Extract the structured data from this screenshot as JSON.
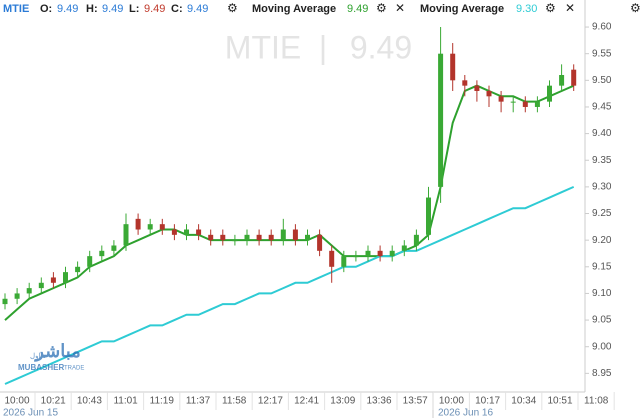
{
  "header": {
    "symbol": "MTIE",
    "open_label": "O:",
    "open": 9.49,
    "high_label": "H:",
    "high": 9.49,
    "low_label": "L:",
    "low": 9.49,
    "close_label": "C:",
    "close": 9.49
  },
  "logo": {
    "arabic": "مباشر",
    "arabic_sub": "تداول",
    "name": "MUBASHER",
    "sub": "TRADE"
  },
  "chart_data": {
    "type": "candlestick",
    "open": [
      9.08,
      9.09,
      9.1,
      9.11,
      9.13,
      9.12,
      9.14,
      9.15,
      9.17,
      9.18,
      9.19,
      9.24,
      9.22,
      9.23,
      9.22,
      9.21,
      9.22,
      9.21,
      9.21,
      9.2,
      9.2,
      9.21,
      9.21,
      9.2,
      9.22,
      9.2,
      9.21,
      9.18,
      9.15,
      9.17,
      9.17,
      9.18,
      9.17,
      9.18,
      9.19,
      9.21,
      9.3,
      9.55,
      9.5,
      9.49,
      9.48,
      9.47,
      9.46,
      9.46,
      9.45,
      9.46,
      9.49,
      9.52
    ],
    "high": [
      9.1,
      9.11,
      9.12,
      9.13,
      9.14,
      9.15,
      9.16,
      9.18,
      9.19,
      9.2,
      9.25,
      9.25,
      9.24,
      9.24,
      9.23,
      9.23,
      9.23,
      9.22,
      9.22,
      9.21,
      9.22,
      9.22,
      9.22,
      9.24,
      9.23,
      9.22,
      9.22,
      9.19,
      9.18,
      9.18,
      9.19,
      9.19,
      9.19,
      9.2,
      9.22,
      9.3,
      9.6,
      9.57,
      9.51,
      9.5,
      9.49,
      9.48,
      9.47,
      9.47,
      9.47,
      9.5,
      9.53,
      9.53
    ],
    "low": [
      9.07,
      9.08,
      9.09,
      9.1,
      9.11,
      9.11,
      9.13,
      9.14,
      9.16,
      9.17,
      9.18,
      9.21,
      9.21,
      9.21,
      9.2,
      9.2,
      9.2,
      9.19,
      9.19,
      9.19,
      9.19,
      9.19,
      9.19,
      9.19,
      9.19,
      9.19,
      9.17,
      9.12,
      9.14,
      9.16,
      9.16,
      9.16,
      9.16,
      9.17,
      9.18,
      9.2,
      9.27,
      9.48,
      9.47,
      9.46,
      9.45,
      9.44,
      9.44,
      9.44,
      9.44,
      9.45,
      9.48,
      9.48
    ],
    "close": [
      9.09,
      9.1,
      9.11,
      9.12,
      9.12,
      9.14,
      9.15,
      9.17,
      9.18,
      9.19,
      9.23,
      9.22,
      9.23,
      9.22,
      9.21,
      9.22,
      9.21,
      9.2,
      9.2,
      9.2,
      9.21,
      9.2,
      9.2,
      9.22,
      9.2,
      9.21,
      9.18,
      9.15,
      9.17,
      9.17,
      9.18,
      9.17,
      9.18,
      9.19,
      9.21,
      9.28,
      9.55,
      9.5,
      9.49,
      9.48,
      9.47,
      9.46,
      9.46,
      9.45,
      9.46,
      9.49,
      9.51,
      9.49
    ],
    "up_color": "#3aa935",
    "down_color": "#b3342b",
    "series": [
      {
        "name": "Moving Average",
        "color": "#2ea12e",
        "last": 9.49,
        "values": [
          9.05,
          9.07,
          9.09,
          9.1,
          9.11,
          9.12,
          9.13,
          9.15,
          9.16,
          9.17,
          9.19,
          9.2,
          9.21,
          9.22,
          9.22,
          9.21,
          9.21,
          9.2,
          9.2,
          9.2,
          9.2,
          9.2,
          9.2,
          9.2,
          9.2,
          9.2,
          9.21,
          9.19,
          9.17,
          9.17,
          9.17,
          9.17,
          9.17,
          9.18,
          9.19,
          9.21,
          9.3,
          9.42,
          9.48,
          9.49,
          9.48,
          9.47,
          9.47,
          9.46,
          9.46,
          9.47,
          9.48,
          9.49
        ]
      },
      {
        "name": "Moving Average",
        "color": "#2ecbd4",
        "last": {
          "value": 9.3,
          "label": "9.30"
        },
        "values": [
          8.93,
          8.94,
          8.95,
          8.96,
          8.97,
          8.98,
          8.99,
          9.0,
          9.01,
          9.01,
          9.02,
          9.03,
          9.04,
          9.04,
          9.05,
          9.06,
          9.06,
          9.07,
          9.08,
          9.08,
          9.09,
          9.1,
          9.1,
          9.11,
          9.12,
          9.12,
          9.13,
          9.14,
          9.15,
          9.15,
          9.16,
          9.17,
          9.17,
          9.18,
          9.18,
          9.19,
          9.2,
          9.21,
          9.22,
          9.23,
          9.24,
          9.25,
          9.26,
          9.26,
          9.27,
          9.28,
          9.29,
          9.3
        ]
      }
    ],
    "xtick_labels": [
      "10:00",
      "10:21",
      "10:43",
      "11:01",
      "11:19",
      "11:37",
      "11:58",
      "12:17",
      "12:41",
      "13:09",
      "13:36",
      "13:57",
      "10:00",
      "10:17",
      "10:34",
      "10:51",
      "11:08"
    ],
    "date_labels": [
      "2026 Jun 15",
      "2026 Jun 16"
    ],
    "ylim": [
      8.915,
      9.632
    ],
    "yticks": [
      {
        "value": 9.6,
        "label": "9.60"
      },
      9.55,
      {
        "value": 9.5,
        "label": "9.50"
      },
      9.45,
      {
        "value": 9.4,
        "label": "9.40"
      },
      9.35,
      {
        "value": 9.3,
        "label": "9.30"
      },
      9.25,
      {
        "value": 9.2,
        "label": "9.20"
      },
      9.15,
      {
        "value": 9.1,
        "label": "9.10"
      },
      9.05,
      {
        "value": 9.0,
        "label": "9.00"
      },
      8.95
    ]
  }
}
